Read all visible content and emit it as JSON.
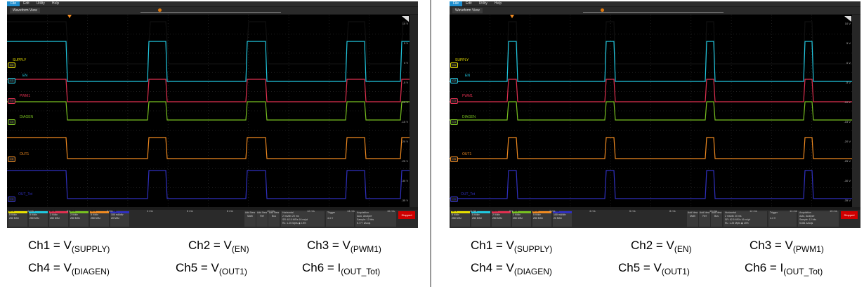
{
  "menu": [
    "File",
    "Edit",
    "Utility",
    "Help"
  ],
  "view_title": "Waveform View",
  "channels": [
    {
      "id": "C1",
      "label": "SUPPLY",
      "color": "#e8e000",
      "wave": "#101010",
      "box": "Ch 1",
      "scale": "5 V/div",
      "bw": "250 MHz"
    },
    {
      "id": "C2",
      "label": "EN",
      "color": "#20c8e0",
      "wave": "#20c8e0",
      "box": "Ch 2",
      "scale": "5 V/div",
      "bw": "250 MHz"
    },
    {
      "id": "C3",
      "label": "PWM1",
      "color": "#e03050",
      "wave": "#e03050",
      "box": "Ch 3",
      "scale": "2 V/div",
      "bw": "250 MHz"
    },
    {
      "id": "C4",
      "label": "DIAGEN",
      "color": "#78c020",
      "wave": "#78c020",
      "box": "Ch 4",
      "scale": "2 V/div",
      "bw": "250 MHz"
    },
    {
      "id": "C5",
      "label": "OUT1",
      "color": "#f08a20",
      "wave": "#f08a20",
      "box": "Ch 5",
      "scale": "5 V/div",
      "bw": "250 MHz"
    },
    {
      "id": "C6",
      "label": "OUT_Tot",
      "color": "#3030c0",
      "wave": "#3030c0",
      "box": "Ch 6",
      "scale": "100 mA/div",
      "bw": "20 MHz"
    }
  ],
  "y_labels": [
    "10 V",
    "5 V",
    "0 V",
    "-5 V",
    "-10 V",
    "-15 V",
    "-20 V",
    "-25 V",
    "-30 V",
    "-35 V"
  ],
  "x_labels": [
    "-2 ms",
    "0 s",
    "2 ms",
    "4 ms",
    "6 ms",
    "8 ms",
    "10 ms",
    "12 ms",
    "14 ms",
    "16 ms"
  ],
  "buttons": [
    "Add New Math",
    "Add New Ref",
    "Add New Bus"
  ],
  "horizontal": {
    "title": "Horizontal",
    "l1": "2 ms/div   20 ms",
    "l2": "SR: 62.5 MS/s  16 ns/pt",
    "l3": "RL: 1.25 Mpts  ◉ 15%"
  },
  "trigger": {
    "title": "Trigger",
    "value": "4.4 V"
  },
  "acquisition": {
    "title": "Acquisition",
    "l1": "Auto,  Analyze",
    "l2": "Sample: 12 bits",
    "l3": "5.777 kAcqs"
  },
  "acquisition_right": {
    "l3": "5.881 kAcqs"
  },
  "stop_label": "Stopped",
  "captions": {
    "row1": [
      {
        "pre": "Ch1 = V",
        "sub": "(SUPPLY)"
      },
      {
        "pre": "Ch2 = V",
        "sub": "(EN)"
      },
      {
        "pre": "Ch3 = V",
        "sub": "(PWM1)"
      }
    ],
    "row2": [
      {
        "pre": "Ch4 = V",
        "sub": "(DIAGEN)"
      },
      {
        "pre": "Ch5 = V",
        "sub": "(OUT1)"
      },
      {
        "pre": "Ch6 = I",
        "sub": "(OUT_Tot)"
      }
    ]
  }
}
